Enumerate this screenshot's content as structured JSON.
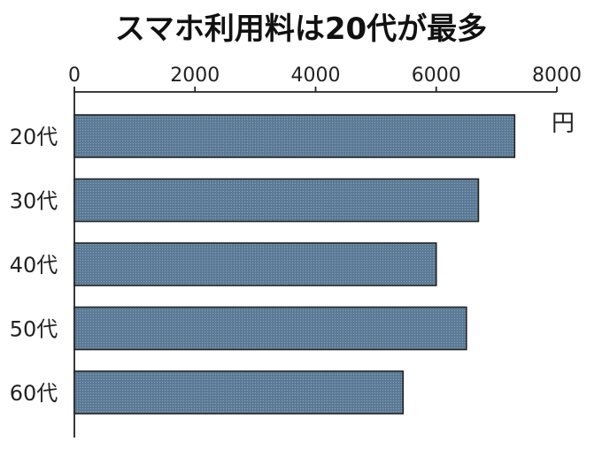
{
  "chart_data": {
    "type": "bar",
    "orientation": "horizontal",
    "title": "スマホ利用料は20代が最多",
    "unit": "円",
    "categories": [
      "20代",
      "30代",
      "40代",
      "50代",
      "60代"
    ],
    "values": [
      7300,
      6700,
      6000,
      6500,
      5450
    ],
    "xlim": [
      0,
      8000
    ],
    "xticks": [
      "0",
      "2000",
      "4000",
      "6000",
      "8000"
    ],
    "legend": "none",
    "grid": false,
    "bar_color": "#5f7d99"
  }
}
